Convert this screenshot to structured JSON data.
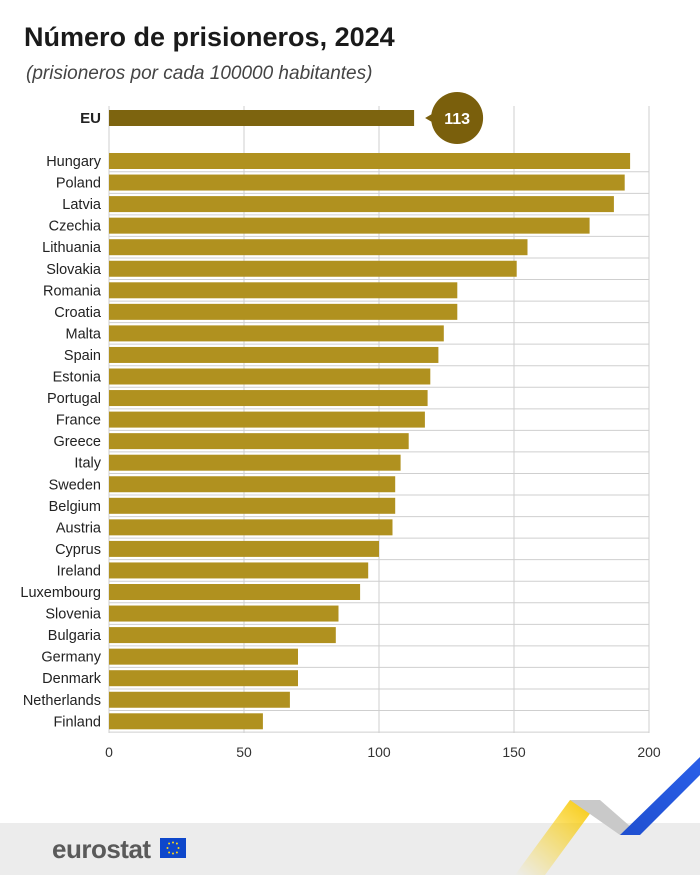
{
  "header": {
    "title": "Número de prisioneros, 2024",
    "subtitle": "(prisioneros por cada 100000 habitantes)"
  },
  "footer": {
    "brand": "eurostat"
  },
  "colors": {
    "eu_bar": "#7d640f",
    "country_bar": "#b0911f",
    "grid": "#cfcfcf",
    "callout": "#7a5f0c"
  },
  "chart_data": {
    "type": "bar",
    "orientation": "horizontal",
    "title": "Número de prisioneros, 2024",
    "subtitle": "(prisioneros por cada 100000 habitantes)",
    "xlim": [
      0,
      200
    ],
    "xticks": [
      0,
      50,
      100,
      150,
      200
    ],
    "grid": true,
    "highlight": {
      "category": "EU",
      "value": 113,
      "label": "113"
    },
    "categories": [
      "EU",
      "Hungary",
      "Poland",
      "Latvia",
      "Czechia",
      "Lithuania",
      "Slovakia",
      "Romania",
      "Croatia",
      "Malta",
      "Spain",
      "Estonia",
      "Portugal",
      "France",
      "Greece",
      "Italy",
      "Sweden",
      "Belgium",
      "Austria",
      "Cyprus",
      "Ireland",
      "Luxembourg",
      "Slovenia",
      "Bulgaria",
      "Germany",
      "Denmark",
      "Netherlands",
      "Finland"
    ],
    "values": [
      113,
      193,
      191,
      187,
      178,
      155,
      151,
      129,
      129,
      124,
      122,
      119,
      118,
      117,
      111,
      108,
      106,
      106,
      105,
      100,
      96,
      93,
      85,
      84,
      70,
      70,
      67,
      57
    ]
  }
}
